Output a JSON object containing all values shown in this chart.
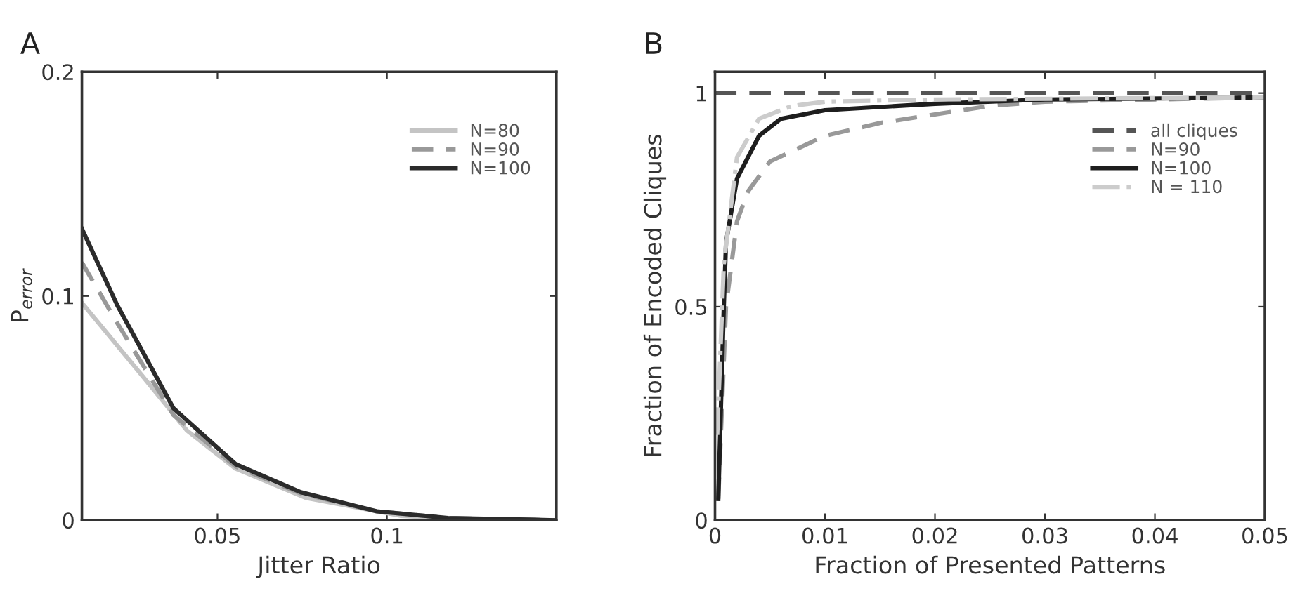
{
  "chart_data": [
    {
      "type": "line",
      "annotations": [
        "A"
      ],
      "xlabel": "Jitter Ratio",
      "ylabel": "P$_{error}$",
      "xlim": [
        0.01,
        0.15
      ],
      "ylim": [
        0,
        0.2
      ],
      "xticks": [
        0.05,
        0.1
      ],
      "yticks": [
        0,
        0.1,
        0.2
      ],
      "grid": false,
      "legend": "top right",
      "series": [
        {
          "name": "N=80",
          "color": "#c4c4c4",
          "line_style": "solid",
          "x": [
            0.01,
            0.0275,
            0.041,
            0.0554,
            0.076,
            0.104,
            0.13,
            0.15
          ],
          "values": [
            0.097,
            0.065,
            0.04,
            0.023,
            0.01,
            0.002,
            0,
            0
          ]
        },
        {
          "name": "N=90",
          "color": "#999999",
          "line_style": "dashed",
          "x": [
            0.01,
            0.0204,
            0.037,
            0.0554,
            0.0746,
            0.097,
            0.118,
            0.15
          ],
          "values": [
            0.115,
            0.088,
            0.047,
            0.024,
            0.012,
            0.004,
            0.001,
            0
          ]
        },
        {
          "name": "N=100",
          "color": "#2b2b2b",
          "line_style": "solid",
          "x": [
            0.01,
            0.0204,
            0.037,
            0.0554,
            0.0746,
            0.097,
            0.118,
            0.15
          ],
          "values": [
            0.13,
            0.096,
            0.05,
            0.025,
            0.0125,
            0.004,
            0.001,
            0
          ]
        }
      ]
    },
    {
      "type": "line",
      "annotations": [
        "B"
      ],
      "xlabel": "Fraction of Presented Patterns",
      "ylabel": "Fraction of Encoded Cliques",
      "xlim": [
        0,
        0.05
      ],
      "ylim": [
        0,
        1.05
      ],
      "xticks": [
        0,
        0.01,
        0.02,
        0.03,
        0.04,
        0.05
      ],
      "yticks": [
        0,
        0.5,
        1
      ],
      "grid": false,
      "legend": "top right",
      "series": [
        {
          "name": "all cliques",
          "color": "#555555",
          "line_style": "dashed",
          "x": [
            0,
            0.05
          ],
          "values": [
            1,
            1
          ]
        },
        {
          "name": "N=90",
          "color": "#999999",
          "line_style": "dashed",
          "x": [
            0.0003,
            0.001,
            0.002,
            0.003,
            0.005,
            0.01,
            0.015,
            0.02,
            0.025,
            0.03,
            0.05
          ],
          "values": [
            0.05,
            0.5,
            0.7,
            0.77,
            0.84,
            0.9,
            0.93,
            0.95,
            0.97,
            0.98,
            0.99
          ]
        },
        {
          "name": "N=100",
          "color": "#1e1e1e",
          "line_style": "solid",
          "x": [
            0.0003,
            0.0008,
            0.001,
            0.002,
            0.004,
            0.006,
            0.01,
            0.02,
            0.03,
            0.05
          ],
          "values": [
            0.05,
            0.5,
            0.65,
            0.8,
            0.9,
            0.94,
            0.96,
            0.975,
            0.985,
            0.99
          ]
        },
        {
          "name": "N = 110",
          "color": "#cccccc",
          "line_style": "dashdot",
          "x": [
            0.0002,
            0.0008,
            0.002,
            0.004,
            0.007,
            0.01,
            0.02,
            0.05
          ],
          "values": [
            0.2,
            0.6,
            0.85,
            0.94,
            0.97,
            0.98,
            0.985,
            0.99
          ]
        }
      ]
    }
  ]
}
